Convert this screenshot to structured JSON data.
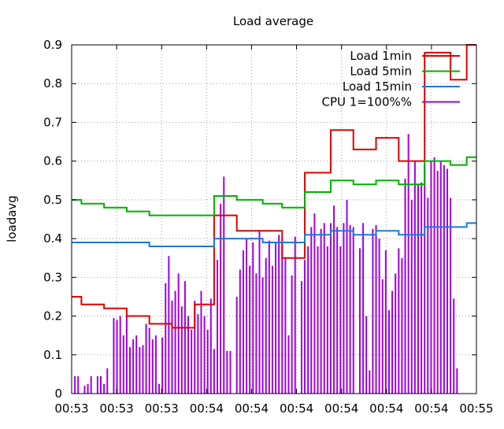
{
  "chart_data": {
    "type": "line",
    "title": "Load average",
    "xlabel": "",
    "ylabel": "loadavg",
    "ylim": [
      0,
      0.9
    ],
    "yticks": [
      "0",
      "0.1",
      "0.2",
      "0.3",
      "0.4",
      "0.5",
      "0.6",
      "0.7",
      "0.8",
      "0.9"
    ],
    "xticks": [
      "00:53",
      "00:53",
      "00:53",
      "00:54",
      "00:54",
      "00:54",
      "00:54",
      "00:54",
      "00:54",
      "00:55"
    ],
    "grid": true,
    "legend_position": "top-right",
    "colors": {
      "load1": "#e00000",
      "load5": "#00b000",
      "load15": "#1a78e0",
      "cpu": "#a000e0"
    },
    "series": [
      {
        "name": "Load 1min",
        "key": "load1",
        "style": "step",
        "points": [
          [
            0.0,
            0.25
          ],
          [
            0.024,
            0.23
          ],
          [
            0.08,
            0.22
          ],
          [
            0.136,
            0.2
          ],
          [
            0.192,
            0.18
          ],
          [
            0.248,
            0.17
          ],
          [
            0.304,
            0.23
          ],
          [
            0.352,
            0.46
          ],
          [
            0.408,
            0.42
          ],
          [
            0.472,
            0.42
          ],
          [
            0.52,
            0.35
          ],
          [
            0.576,
            0.57
          ],
          [
            0.64,
            0.68
          ],
          [
            0.696,
            0.63
          ],
          [
            0.752,
            0.66
          ],
          [
            0.808,
            0.6
          ],
          [
            0.872,
            0.88
          ],
          [
            0.936,
            0.81
          ],
          [
            0.976,
            0.9
          ],
          [
            1.0,
            0.9
          ]
        ]
      },
      {
        "name": "Load 5min",
        "key": "load5",
        "style": "step",
        "points": [
          [
            0.0,
            0.5
          ],
          [
            0.024,
            0.49
          ],
          [
            0.08,
            0.48
          ],
          [
            0.136,
            0.47
          ],
          [
            0.192,
            0.46
          ],
          [
            0.248,
            0.46
          ],
          [
            0.352,
            0.51
          ],
          [
            0.408,
            0.5
          ],
          [
            0.472,
            0.49
          ],
          [
            0.52,
            0.48
          ],
          [
            0.576,
            0.52
          ],
          [
            0.64,
            0.55
          ],
          [
            0.696,
            0.54
          ],
          [
            0.752,
            0.55
          ],
          [
            0.808,
            0.54
          ],
          [
            0.872,
            0.6
          ],
          [
            0.936,
            0.59
          ],
          [
            0.976,
            0.61
          ],
          [
            1.0,
            0.61
          ]
        ]
      },
      {
        "name": "Load 15min",
        "key": "load15",
        "style": "step",
        "points": [
          [
            0.0,
            0.39
          ],
          [
            0.192,
            0.38
          ],
          [
            0.352,
            0.4
          ],
          [
            0.472,
            0.39
          ],
          [
            0.576,
            0.41
          ],
          [
            0.64,
            0.42
          ],
          [
            0.696,
            0.41
          ],
          [
            0.752,
            0.42
          ],
          [
            0.808,
            0.41
          ],
          [
            0.872,
            0.43
          ],
          [
            0.976,
            0.44
          ],
          [
            1.0,
            0.44
          ]
        ]
      },
      {
        "name": "CPU 1=100%%",
        "key": "cpu",
        "style": "impulses",
        "points": [
          [
            0.008,
            0.045
          ],
          [
            0.016,
            0.045
          ],
          [
            0.032,
            0.02
          ],
          [
            0.04,
            0.025
          ],
          [
            0.048,
            0.045
          ],
          [
            0.064,
            0.045
          ],
          [
            0.072,
            0.045
          ],
          [
            0.08,
            0.025
          ],
          [
            0.088,
            0.065
          ],
          [
            0.104,
            0.195
          ],
          [
            0.112,
            0.19
          ],
          [
            0.12,
            0.2
          ],
          [
            0.128,
            0.15
          ],
          [
            0.136,
            0.2
          ],
          [
            0.144,
            0.12
          ],
          [
            0.152,
            0.14
          ],
          [
            0.16,
            0.15
          ],
          [
            0.168,
            0.12
          ],
          [
            0.176,
            0.125
          ],
          [
            0.184,
            0.18
          ],
          [
            0.192,
            0.17
          ],
          [
            0.2,
            0.14
          ],
          [
            0.208,
            0.15
          ],
          [
            0.216,
            0.025
          ],
          [
            0.224,
            0.145
          ],
          [
            0.232,
            0.285
          ],
          [
            0.24,
            0.355
          ],
          [
            0.248,
            0.24
          ],
          [
            0.256,
            0.265
          ],
          [
            0.264,
            0.31
          ],
          [
            0.272,
            0.225
          ],
          [
            0.28,
            0.29
          ],
          [
            0.288,
            0.2
          ],
          [
            0.296,
            0.165
          ],
          [
            0.304,
            0.24
          ],
          [
            0.312,
            0.205
          ],
          [
            0.32,
            0.265
          ],
          [
            0.328,
            0.2
          ],
          [
            0.336,
            0.165
          ],
          [
            0.344,
            0.245
          ],
          [
            0.352,
            0.115
          ],
          [
            0.36,
            0.345
          ],
          [
            0.368,
            0.49
          ],
          [
            0.376,
            0.56
          ],
          [
            0.384,
            0.11
          ],
          [
            0.392,
            0.11
          ],
          [
            0.408,
            0.25
          ],
          [
            0.416,
            0.32
          ],
          [
            0.424,
            0.37
          ],
          [
            0.432,
            0.4
          ],
          [
            0.44,
            0.33
          ],
          [
            0.448,
            0.39
          ],
          [
            0.456,
            0.31
          ],
          [
            0.464,
            0.42
          ],
          [
            0.472,
            0.3
          ],
          [
            0.48,
            0.35
          ],
          [
            0.488,
            0.395
          ],
          [
            0.496,
            0.33
          ],
          [
            0.504,
            0.39
          ],
          [
            0.512,
            0.41
          ],
          [
            0.52,
            0.39
          ],
          [
            0.528,
            0.35
          ],
          [
            0.536,
            0.15
          ],
          [
            0.544,
            0.305
          ],
          [
            0.552,
            0.405
          ],
          [
            0.568,
            0.29
          ],
          [
            0.576,
            0.345
          ],
          [
            0.584,
            0.38
          ],
          [
            0.592,
            0.43
          ],
          [
            0.6,
            0.465
          ],
          [
            0.608,
            0.38
          ],
          [
            0.616,
            0.425
          ],
          [
            0.624,
            0.44
          ],
          [
            0.632,
            0.38
          ],
          [
            0.64,
            0.44
          ],
          [
            0.648,
            0.485
          ],
          [
            0.656,
            0.43
          ],
          [
            0.664,
            0.38
          ],
          [
            0.672,
            0.44
          ],
          [
            0.68,
            0.5
          ],
          [
            0.688,
            0.435
          ],
          [
            0.696,
            0.43
          ],
          [
            0.712,
            0.375
          ],
          [
            0.72,
            0.44
          ],
          [
            0.728,
            0.2
          ],
          [
            0.736,
            0.06
          ],
          [
            0.744,
            0.425
          ],
          [
            0.752,
            0.435
          ],
          [
            0.76,
            0.4
          ],
          [
            0.768,
            0.295
          ],
          [
            0.776,
            0.37
          ],
          [
            0.784,
            0.215
          ],
          [
            0.792,
            0.265
          ],
          [
            0.8,
            0.31
          ],
          [
            0.808,
            0.375
          ],
          [
            0.816,
            0.35
          ],
          [
            0.824,
            0.555
          ],
          [
            0.832,
            0.67
          ],
          [
            0.84,
            0.5
          ],
          [
            0.848,
            0.6
          ],
          [
            0.856,
            0.54
          ],
          [
            0.864,
            0.545
          ],
          [
            0.872,
            0.59
          ],
          [
            0.88,
            0.505
          ],
          [
            0.888,
            0.6
          ],
          [
            0.896,
            0.61
          ],
          [
            0.904,
            0.575
          ],
          [
            0.912,
            0.6
          ],
          [
            0.92,
            0.59
          ],
          [
            0.928,
            0.58
          ],
          [
            0.936,
            0.505
          ],
          [
            0.944,
            0.245
          ],
          [
            0.952,
            0.065
          ]
        ]
      }
    ]
  }
}
